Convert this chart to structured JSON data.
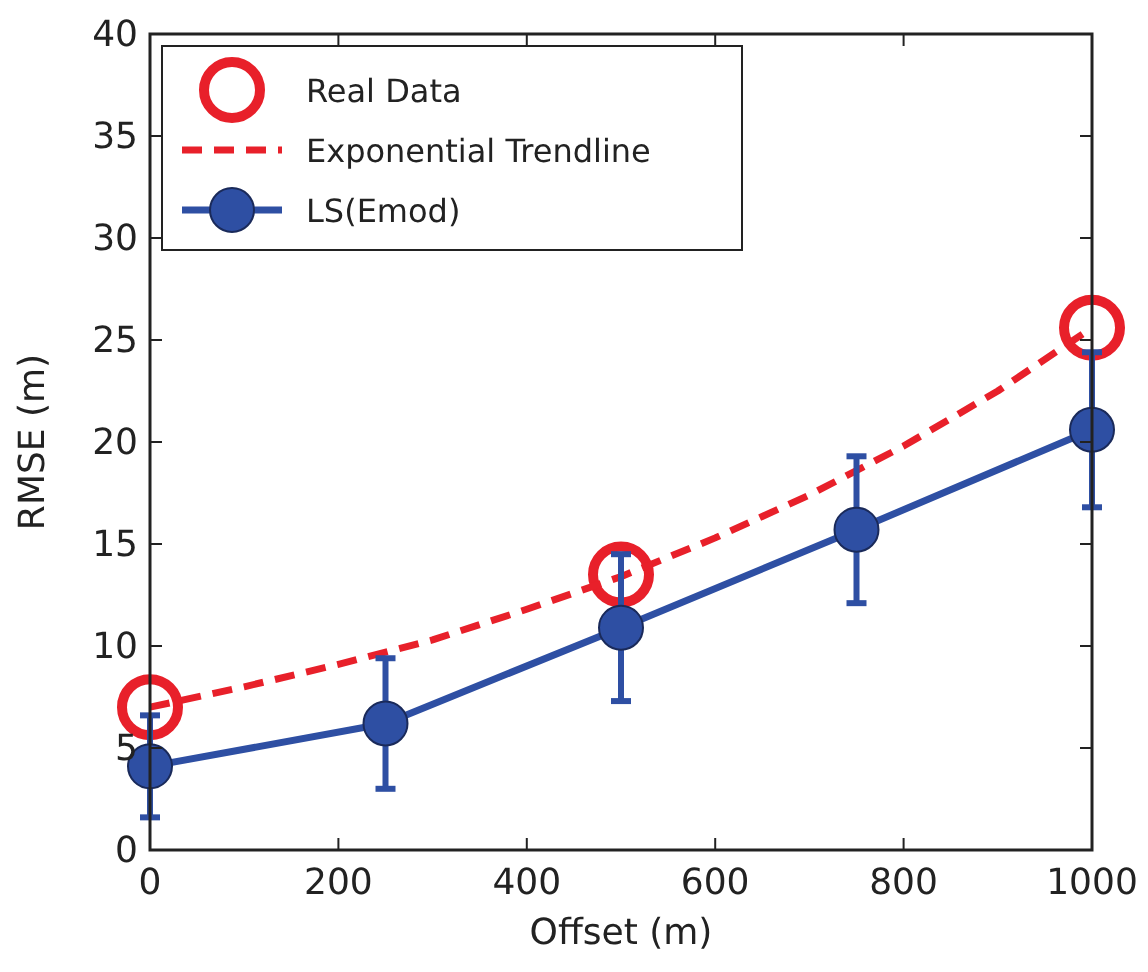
{
  "chart_data": {
    "type": "line",
    "xlabel": "Offset (m)",
    "ylabel": "RMSE (m)",
    "xlim": [
      0,
      1000
    ],
    "xticks": [
      0,
      200,
      400,
      600,
      800,
      1000
    ],
    "ylim": [
      0,
      40
    ],
    "yticks": [
      0,
      5,
      10,
      15,
      20,
      25,
      30,
      35,
      40
    ],
    "grid": false,
    "legend": "top left",
    "series": [
      {
        "name": "Real Data",
        "type": "scatter",
        "marker": "circle",
        "color": "#e8202a",
        "x": [
          0,
          500,
          1000
        ],
        "values": [
          7.0,
          13.5,
          25.6
        ]
      },
      {
        "name": "Exponential Trendline",
        "type": "line",
        "marker": "none",
        "line_style": "dashed",
        "color": "#e8202a",
        "x": [
          0,
          100,
          200,
          300,
          400,
          500,
          600,
          700,
          800,
          900,
          1000
        ],
        "values": [
          7.0,
          8.0,
          9.1,
          10.3,
          11.8,
          13.4,
          15.3,
          17.4,
          19.8,
          22.5,
          25.6
        ]
      },
      {
        "name": "LS(Emod)",
        "marker": "circle",
        "line_style": "solid",
        "color": "#2e4fa3",
        "x": [
          0,
          250,
          500,
          750,
          1000
        ],
        "values": [
          4.1,
          6.2,
          10.9,
          15.7,
          20.6
        ],
        "errors": [
          2.5,
          3.2,
          3.6,
          3.6,
          3.8
        ]
      }
    ]
  }
}
